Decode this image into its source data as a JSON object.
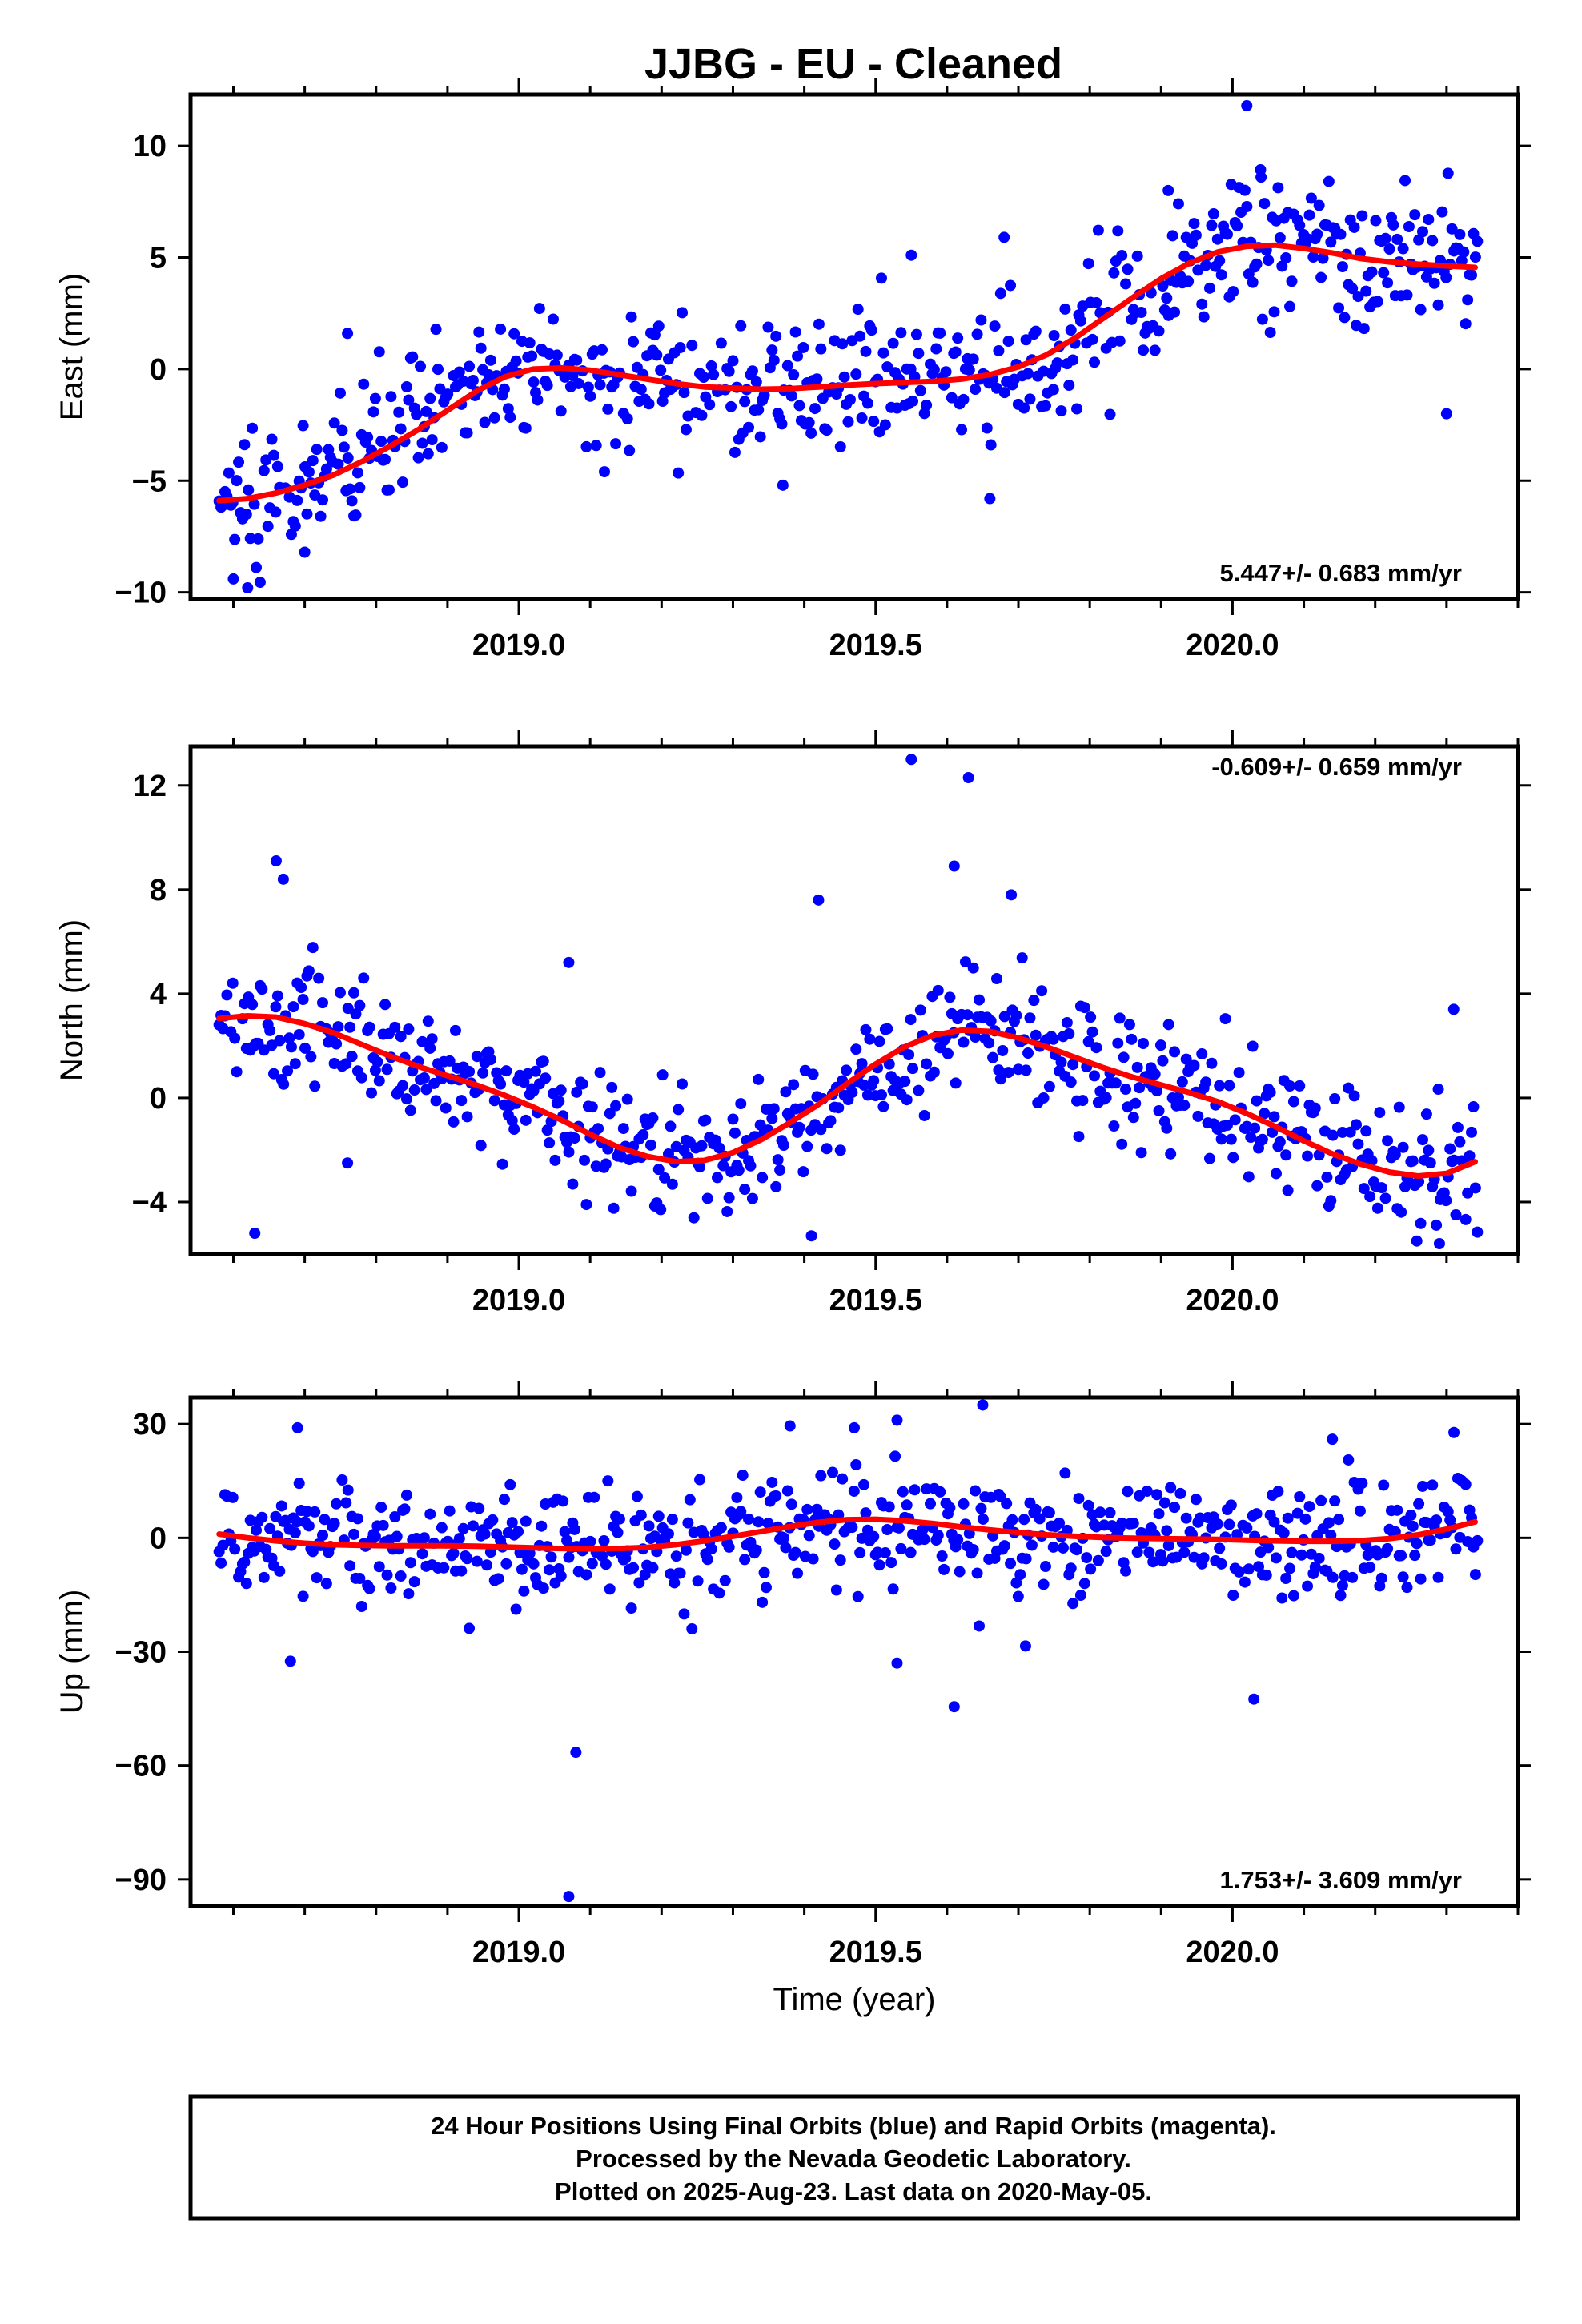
{
  "title": "JJBG  - EU - Cleaned",
  "colors": {
    "final_orbits": "#0000ff",
    "model_fit": "#ff0000",
    "frame": "#000000"
  },
  "footer": {
    "lines": [
      "24 Hour Positions Using Final Orbits (blue) and Rapid Orbits (magenta).",
      "Processed by the Nevada Geodetic Laboratory.",
      "Plotted on 2025-Aug-23. Last data on 2020-May-05."
    ]
  },
  "chart_data": [
    {
      "type": "scatter",
      "panel": "east",
      "ylabel": "East (mm)",
      "xlabel": "",
      "xlim": [
        2018.54,
        2020.4
      ],
      "ylim": [
        -10.3,
        12.3
      ],
      "yticks": [
        -10,
        -5,
        0,
        5,
        10
      ],
      "xticks": [
        2019.0,
        2019.5,
        2020.0
      ],
      "xtick_labels": [
        "2019.0",
        "2019.5",
        "2020.0"
      ],
      "rate_label": "5.447+/- 0.683 mm/yr",
      "rate_position": "bottom-right",
      "series": [
        {
          "role": "final-orbits-daily",
          "color": "#0000ff",
          "trend": [
            [
              2018.58,
              -5.9
            ],
            [
              2018.65,
              -5.6
            ],
            [
              2018.72,
              -5.0
            ],
            [
              2018.8,
              -3.8
            ],
            [
              2018.88,
              -2.1
            ],
            [
              2018.96,
              -0.4
            ],
            [
              2019.05,
              0.0
            ],
            [
              2019.15,
              -0.4
            ],
            [
              2019.25,
              -0.8
            ],
            [
              2019.35,
              -0.9
            ],
            [
              2019.45,
              -0.6
            ],
            [
              2019.55,
              -0.5
            ],
            [
              2019.65,
              -0.2
            ],
            [
              2019.72,
              0.5
            ],
            [
              2019.8,
              1.7
            ],
            [
              2019.88,
              3.3
            ],
            [
              2019.95,
              4.8
            ],
            [
              2020.02,
              5.6
            ],
            [
              2020.1,
              5.3
            ],
            [
              2020.2,
              4.8
            ],
            [
              2020.34,
              4.5
            ]
          ],
          "scatter_sd": 1.55,
          "outliers": [
            [
              2020.02,
              11.8
            ],
            [
              2018.62,
              -9.8
            ],
            [
              2018.6,
              -9.4
            ],
            [
              2018.7,
              -8.2
            ],
            [
              2019.75,
              1.5
            ],
            [
              2019.55,
              5.1
            ],
            [
              2019.68,
              5.9
            ],
            [
              2020.3,
              -2.0
            ],
            [
              2019.37,
              -5.2
            ],
            [
              2019.66,
              -5.8
            ],
            [
              2018.76,
              1.6
            ],
            [
              2019.12,
              -4.6
            ],
            [
              2019.91,
              8.0
            ],
            [
              2020.04,
              8.6
            ]
          ]
        },
        {
          "role": "model-fit",
          "color": "#ff0000",
          "x": [
            2018.58,
            2018.62,
            2018.66,
            2018.7,
            2018.74,
            2018.78,
            2018.82,
            2018.86,
            2018.9,
            2018.94,
            2018.98,
            2019.02,
            2019.06,
            2019.1,
            2019.14,
            2019.18,
            2019.22,
            2019.26,
            2019.3,
            2019.34,
            2019.38,
            2019.42,
            2019.46,
            2019.5,
            2019.54,
            2019.58,
            2019.62,
            2019.66,
            2019.7,
            2019.74,
            2019.78,
            2019.82,
            2019.86,
            2019.9,
            2019.94,
            2019.98,
            2020.02,
            2020.06,
            2020.1,
            2020.14,
            2020.18,
            2020.22,
            2020.26,
            2020.3,
            2020.34
          ],
          "y": [
            -5.9,
            -5.8,
            -5.55,
            -5.2,
            -4.75,
            -4.15,
            -3.45,
            -2.7,
            -1.85,
            -1.0,
            -0.35,
            0.0,
            0.05,
            -0.05,
            -0.25,
            -0.45,
            -0.65,
            -0.8,
            -0.85,
            -0.9,
            -0.88,
            -0.8,
            -0.72,
            -0.65,
            -0.6,
            -0.55,
            -0.45,
            -0.25,
            0.1,
            0.65,
            1.4,
            2.3,
            3.2,
            4.05,
            4.75,
            5.25,
            5.5,
            5.55,
            5.4,
            5.2,
            4.95,
            4.8,
            4.7,
            4.62,
            4.55
          ]
        }
      ]
    },
    {
      "type": "scatter",
      "panel": "north",
      "ylabel": "North (mm)",
      "xlabel": "",
      "xlim": [
        2018.54,
        2020.4
      ],
      "ylim": [
        -6.0,
        13.5
      ],
      "yticks": [
        -4,
        0,
        4,
        8,
        12
      ],
      "xticks": [
        2019.0,
        2019.5,
        2020.0
      ],
      "xtick_labels": [
        "2019.0",
        "2019.5",
        "2020.0"
      ],
      "rate_label": "-0.609+/- 0.659 mm/yr",
      "rate_position": "top-right",
      "series": [
        {
          "role": "final-orbits-daily",
          "color": "#0000ff",
          "trend": [
            [
              2018.58,
              3.0
            ],
            [
              2018.66,
              3.1
            ],
            [
              2018.74,
              2.5
            ],
            [
              2018.82,
              1.6
            ],
            [
              2018.9,
              0.9
            ],
            [
              2018.98,
              0.3
            ],
            [
              2019.06,
              -0.5
            ],
            [
              2019.14,
              -1.5
            ],
            [
              2019.2,
              -2.2
            ],
            [
              2019.26,
              -2.4
            ],
            [
              2019.32,
              -2.0
            ],
            [
              2019.4,
              -0.9
            ],
            [
              2019.48,
              0.6
            ],
            [
              2019.56,
              2.0
            ],
            [
              2019.62,
              2.6
            ],
            [
              2019.68,
              2.5
            ],
            [
              2019.76,
              1.8
            ],
            [
              2019.84,
              1.0
            ],
            [
              2019.92,
              0.4
            ],
            [
              2020.0,
              -0.2
            ],
            [
              2020.08,
              -1.0
            ],
            [
              2020.14,
              -1.9
            ],
            [
              2020.2,
              -2.6
            ],
            [
              2020.26,
              -3.0
            ],
            [
              2020.34,
              -2.5
            ]
          ],
          "scatter_sd": 1.25,
          "outliers": [
            [
              2019.55,
              13.0
            ],
            [
              2019.63,
              12.3
            ],
            [
              2018.66,
              9.1
            ],
            [
              2018.67,
              8.4
            ],
            [
              2019.61,
              8.9
            ],
            [
              2019.69,
              7.8
            ],
            [
              2019.42,
              7.6
            ],
            [
              2019.07,
              5.2
            ],
            [
              2018.63,
              -5.2
            ],
            [
              2019.41,
              -5.3
            ],
            [
              2020.31,
              3.4
            ],
            [
              2020.29,
              -5.6
            ],
            [
              2018.76,
              -2.5
            ]
          ]
        },
        {
          "role": "model-fit",
          "color": "#ff0000",
          "x": [
            2018.58,
            2018.62,
            2018.66,
            2018.7,
            2018.74,
            2018.78,
            2018.82,
            2018.86,
            2018.9,
            2018.94,
            2018.98,
            2019.02,
            2019.06,
            2019.1,
            2019.14,
            2019.18,
            2019.22,
            2019.26,
            2019.3,
            2019.34,
            2019.38,
            2019.42,
            2019.46,
            2019.5,
            2019.54,
            2019.58,
            2019.62,
            2019.66,
            2019.7,
            2019.74,
            2019.78,
            2019.82,
            2019.86,
            2019.9,
            2019.94,
            2019.98,
            2020.02,
            2020.06,
            2020.1,
            2020.14,
            2020.18,
            2020.22,
            2020.26,
            2020.3,
            2020.34
          ],
          "y": [
            3.05,
            3.15,
            3.1,
            2.85,
            2.5,
            2.05,
            1.6,
            1.2,
            0.85,
            0.5,
            0.1,
            -0.35,
            -0.85,
            -1.4,
            -1.9,
            -2.25,
            -2.45,
            -2.4,
            -2.1,
            -1.6,
            -0.95,
            -0.25,
            0.55,
            1.3,
            1.95,
            2.4,
            2.6,
            2.55,
            2.3,
            1.95,
            1.55,
            1.15,
            0.8,
            0.5,
            0.2,
            -0.15,
            -0.6,
            -1.1,
            -1.65,
            -2.15,
            -2.55,
            -2.85,
            -3.0,
            -2.9,
            -2.45
          ]
        }
      ]
    },
    {
      "type": "scatter",
      "panel": "up",
      "ylabel": "Up (mm)",
      "xlabel": "Time (year)",
      "xlim": [
        2018.54,
        2020.4
      ],
      "ylim": [
        -97,
        37
      ],
      "yticks": [
        -90,
        -60,
        -30,
        0,
        30
      ],
      "xticks": [
        2019.0,
        2019.5,
        2020.0
      ],
      "xtick_labels": [
        "2019.0",
        "2019.5",
        "2020.0"
      ],
      "rate_label": "1.753+/- 3.609 mm/yr",
      "rate_position": "bottom-right",
      "series": [
        {
          "role": "final-orbits-daily",
          "color": "#0000ff",
          "trend": [
            [
              2018.58,
              1.0
            ],
            [
              2018.7,
              -1.0
            ],
            [
              2018.85,
              -2.0
            ],
            [
              2019.0,
              -2.5
            ],
            [
              2019.12,
              -2.5
            ],
            [
              2019.25,
              -1.0
            ],
            [
              2019.35,
              2.0
            ],
            [
              2019.45,
              4.5
            ],
            [
              2019.55,
              3.5
            ],
            [
              2019.65,
              1.5
            ],
            [
              2019.8,
              0.0
            ],
            [
              2020.0,
              -0.5
            ],
            [
              2020.15,
              -1.0
            ],
            [
              2020.25,
              1.0
            ],
            [
              2020.34,
              4.5
            ]
          ],
          "scatter_sd": 7.5,
          "outliers": [
            [
              2019.08,
              -56.5
            ],
            [
              2019.07,
              -94.5
            ],
            [
              2020.03,
              -42.5
            ],
            [
              2019.61,
              -44.5
            ],
            [
              2019.53,
              -33.0
            ],
            [
              2018.68,
              -32.5
            ],
            [
              2019.65,
              35.0
            ],
            [
              2019.53,
              31.0
            ],
            [
              2019.38,
              29.5
            ],
            [
              2019.47,
              29.0
            ],
            [
              2018.69,
              29.0
            ],
            [
              2020.14,
              26.0
            ],
            [
              2019.71,
              -28.5
            ]
          ]
        },
        {
          "role": "model-fit",
          "color": "#ff0000",
          "x": [
            2018.58,
            2018.62,
            2018.66,
            2018.7,
            2018.74,
            2018.78,
            2018.82,
            2018.86,
            2018.9,
            2018.94,
            2018.98,
            2019.02,
            2019.06,
            2019.1,
            2019.14,
            2019.18,
            2019.22,
            2019.26,
            2019.3,
            2019.34,
            2019.38,
            2019.42,
            2019.46,
            2019.5,
            2019.54,
            2019.58,
            2019.62,
            2019.66,
            2019.7,
            2019.74,
            2019.78,
            2019.82,
            2019.86,
            2019.9,
            2019.94,
            2019.98,
            2020.02,
            2020.06,
            2020.1,
            2020.14,
            2020.18,
            2020.22,
            2020.26,
            2020.3,
            2020.34
          ],
          "y": [
            1.0,
            0.0,
            -0.8,
            -1.4,
            -1.8,
            -2.0,
            -2.1,
            -2.1,
            -2.1,
            -2.2,
            -2.4,
            -2.6,
            -2.8,
            -2.9,
            -2.8,
            -2.5,
            -1.8,
            -0.8,
            0.4,
            1.7,
            3.0,
            4.1,
            4.8,
            4.9,
            4.5,
            3.8,
            2.9,
            2.1,
            1.4,
            0.8,
            0.4,
            0.1,
            -0.1,
            -0.2,
            -0.3,
            -0.4,
            -0.6,
            -0.8,
            -0.9,
            -0.9,
            -0.7,
            -0.2,
            0.8,
            2.3,
            4.2
          ]
        }
      ]
    }
  ]
}
